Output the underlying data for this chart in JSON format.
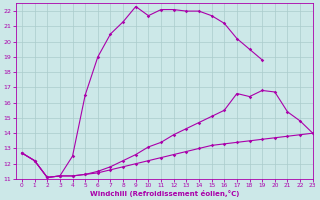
{
  "xlabel": "Windchill (Refroidissement éolien,°C)",
  "background_color": "#cce8e8",
  "grid_color": "#aacccc",
  "line_color": "#aa00aa",
  "xlim": [
    -0.5,
    23
  ],
  "ylim": [
    11,
    22.5
  ],
  "xticks": [
    0,
    1,
    2,
    3,
    4,
    5,
    6,
    7,
    8,
    9,
    10,
    11,
    12,
    13,
    14,
    15,
    16,
    17,
    18,
    19,
    20,
    21,
    22,
    23
  ],
  "yticks": [
    11,
    12,
    13,
    14,
    15,
    16,
    17,
    18,
    19,
    20,
    21,
    22
  ],
  "curve1_x": [
    0,
    1,
    2,
    3,
    4,
    5,
    6,
    7,
    8,
    9,
    10,
    11,
    12,
    13,
    14,
    15,
    16,
    17,
    18,
    19
  ],
  "curve1_y": [
    12.7,
    12.2,
    11.1,
    11.2,
    12.5,
    16.5,
    19.0,
    20.5,
    21.3,
    22.3,
    21.7,
    22.1,
    22.1,
    22.0,
    22.0,
    21.7,
    21.2,
    20.2,
    19.5,
    18.8
  ],
  "curve2_x": [
    0,
    1,
    2,
    3,
    4,
    5,
    6,
    7,
    8,
    9,
    10,
    11,
    12,
    13,
    14,
    15,
    16,
    17,
    18,
    19,
    20,
    21,
    22,
    23
  ],
  "curve2_y": [
    12.7,
    12.2,
    11.1,
    11.2,
    11.2,
    11.3,
    11.5,
    11.8,
    12.2,
    12.6,
    13.1,
    13.4,
    13.9,
    14.3,
    14.7,
    15.1,
    15.5,
    16.6,
    16.4,
    16.8,
    16.7,
    15.4,
    14.8,
    14.0
  ],
  "curve3_x": [
    0,
    1,
    2,
    3,
    4,
    5,
    6,
    7,
    8,
    9,
    10,
    11,
    12,
    13,
    14,
    15,
    16,
    17,
    18,
    19,
    20,
    21,
    22,
    23
  ],
  "curve3_y": [
    12.7,
    12.2,
    11.1,
    11.2,
    11.2,
    11.3,
    11.4,
    11.6,
    11.8,
    12.0,
    12.2,
    12.4,
    12.6,
    12.8,
    13.0,
    13.2,
    13.3,
    13.4,
    13.5,
    13.6,
    13.7,
    13.8,
    13.9,
    14.0
  ]
}
